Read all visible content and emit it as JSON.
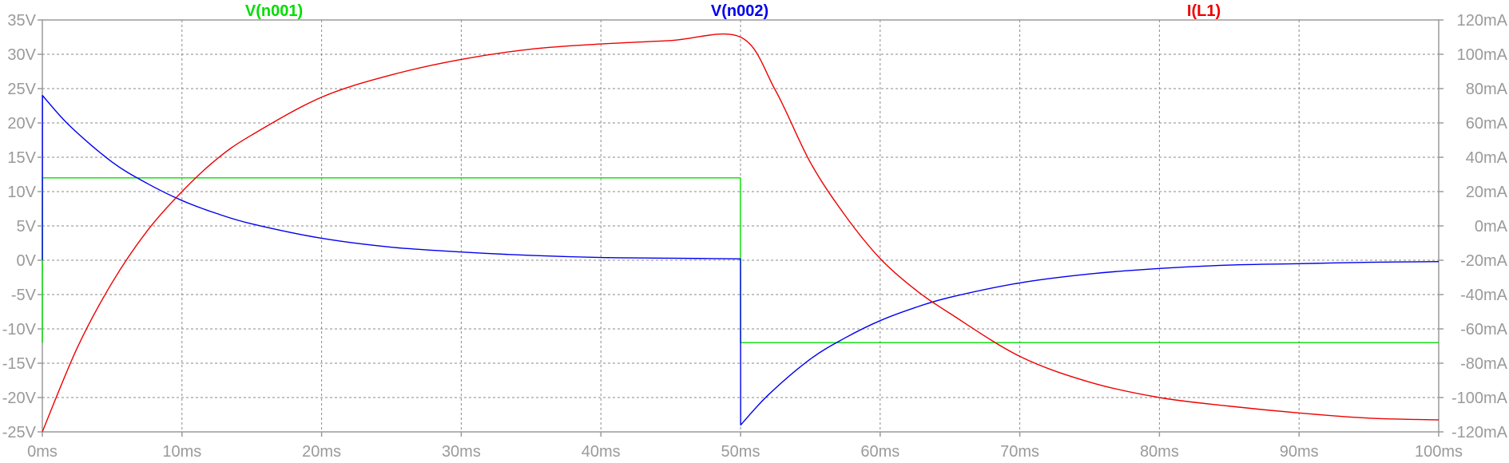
{
  "chart_data": {
    "type": "line",
    "title": "",
    "xlabel": "",
    "ylabel": "",
    "grid": true,
    "legend_placement": "top",
    "x_axis": {
      "ticks": [
        0,
        10,
        20,
        30,
        40,
        50,
        60,
        70,
        80,
        90,
        100
      ],
      "tick_labels": [
        "0ms",
        "10ms",
        "20ms",
        "30ms",
        "40ms",
        "50ms",
        "60ms",
        "70ms",
        "80ms",
        "90ms",
        "100ms"
      ],
      "range": [
        0,
        100
      ],
      "unit": "ms"
    },
    "y_axis_left": {
      "ticks": [
        35,
        30,
        25,
        20,
        15,
        10,
        5,
        0,
        -5,
        -10,
        -15,
        -20,
        -25
      ],
      "tick_labels": [
        "35V",
        "30V",
        "25V",
        "20V",
        "15V",
        "10V",
        "5V",
        "0V",
        "-5V",
        "-10V",
        "-15V",
        "-20V",
        "-25V"
      ],
      "range": [
        -25,
        35
      ],
      "unit": "V"
    },
    "y_axis_right": {
      "ticks": [
        120,
        100,
        80,
        60,
        40,
        20,
        0,
        -20,
        -40,
        -60,
        -80,
        -100,
        -120
      ],
      "tick_labels": [
        "120mA",
        "100mA",
        "80mA",
        "60mA",
        "40mA",
        "20mA",
        "0mA",
        "-20mA",
        "-40mA",
        "-60mA",
        "-80mA",
        "-100mA",
        "-120mA"
      ],
      "range": [
        -120,
        120
      ],
      "unit": "mA"
    },
    "series": [
      {
        "name": "V(n001)",
        "color": "#00dd00",
        "axis": "left",
        "x": [
          0,
          0.01,
          0.02,
          49.99,
          50.0,
          50.01,
          100
        ],
        "y": [
          -12,
          12,
          12,
          12,
          -12,
          -12,
          -12
        ]
      },
      {
        "name": "V(n002)",
        "color": "#0000ee",
        "axis": "left",
        "x": [
          0,
          0.01,
          2,
          5,
          7.5,
          10,
          12.5,
          15,
          20,
          25,
          30,
          35,
          40,
          45,
          50,
          50.01,
          52,
          55,
          57.5,
          60,
          62.5,
          65,
          70,
          75,
          80,
          85,
          90,
          95,
          100
        ],
        "y": [
          0,
          24,
          19.5,
          14.3,
          11.2,
          8.7,
          6.8,
          5.3,
          3.2,
          1.9,
          1.2,
          0.7,
          0.4,
          0.3,
          0.2,
          -24,
          -19.6,
          -14.4,
          -11.3,
          -8.8,
          -6.9,
          -5.4,
          -3.3,
          -2.0,
          -1.2,
          -0.7,
          -0.5,
          -0.3,
          -0.2
        ]
      },
      {
        "name": "I(L1)",
        "color": "#ee0000",
        "axis": "right",
        "x": [
          0,
          2.5,
          5,
          7.5,
          10,
          12.5,
          15,
          20,
          25,
          30,
          35,
          40,
          45,
          50,
          52.5,
          55,
          57.5,
          60,
          62.5,
          65,
          70,
          75,
          80,
          85,
          90,
          95,
          100
        ],
        "y": [
          -120,
          -71,
          -33,
          -3,
          20,
          39,
          53,
          75,
          88,
          97,
          103,
          106,
          108,
          110,
          79,
          37,
          6,
          -19,
          -37,
          -51,
          -76,
          -91,
          -100,
          -105,
          -109,
          -112,
          -113
        ]
      }
    ]
  }
}
